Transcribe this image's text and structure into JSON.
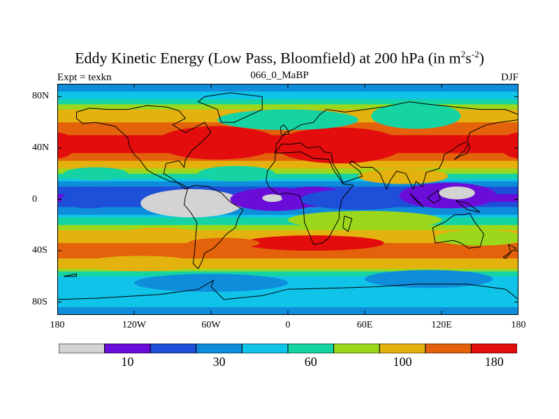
{
  "chart_data": {
    "type": "heatmap",
    "title": "Eddy Kinetic Energy (Low Pass, Bloomfield) at 200 hPa (in m",
    "title_units": {
      "base1": "2",
      "mid": "s",
      "exp2": "-2",
      "close": ")"
    },
    "subtitle": "066_0_MaBP",
    "left_label": "Expt = texkn",
    "right_label": "DJF",
    "x_ticks": [
      "180",
      "120W",
      "60W",
      "0",
      "60E",
      "120E",
      "180"
    ],
    "x_tick_values": [
      -180,
      -120,
      -60,
      0,
      60,
      120,
      180
    ],
    "y_ticks": [
      "80N",
      "40N",
      "0",
      "40S",
      "80S"
    ],
    "y_tick_values": [
      80,
      40,
      0,
      -40,
      -80
    ],
    "xlim": [
      -180,
      180
    ],
    "ylim": [
      -90,
      90
    ],
    "colorbar": {
      "colors": [
        "#d3d3d3",
        "#6a0dd8",
        "#1e4fd8",
        "#0f8ddb",
        "#10c3e8",
        "#16d3a3",
        "#9bd81c",
        "#e3b20e",
        "#e3620b",
        "#e30d0d"
      ],
      "labels": [
        "10",
        "30",
        "60",
        "100",
        "180"
      ],
      "label_boundary_index": [
        1,
        3,
        5,
        7,
        9
      ]
    },
    "zonal_band_values": [
      {
        "lat": 90,
        "value": 35
      },
      {
        "lat": 80,
        "value": 50
      },
      {
        "lat": 70,
        "value": 100
      },
      {
        "lat": 60,
        "value": 140
      },
      {
        "lat": 50,
        "value": 180
      },
      {
        "lat": 40,
        "value": 200
      },
      {
        "lat": 30,
        "value": 140
      },
      {
        "lat": 20,
        "value": 75
      },
      {
        "lat": 10,
        "value": 25
      },
      {
        "lat": 0,
        "value": 15
      },
      {
        "lat": -10,
        "value": 40
      },
      {
        "lat": -20,
        "value": 80
      },
      {
        "lat": -30,
        "value": 120
      },
      {
        "lat": -40,
        "value": 170
      },
      {
        "lat": -50,
        "value": 120
      },
      {
        "lat": -60,
        "value": 55
      },
      {
        "lat": -70,
        "value": 45
      },
      {
        "lat": -80,
        "value": 50
      },
      {
        "lat": -90,
        "value": 35
      }
    ]
  }
}
